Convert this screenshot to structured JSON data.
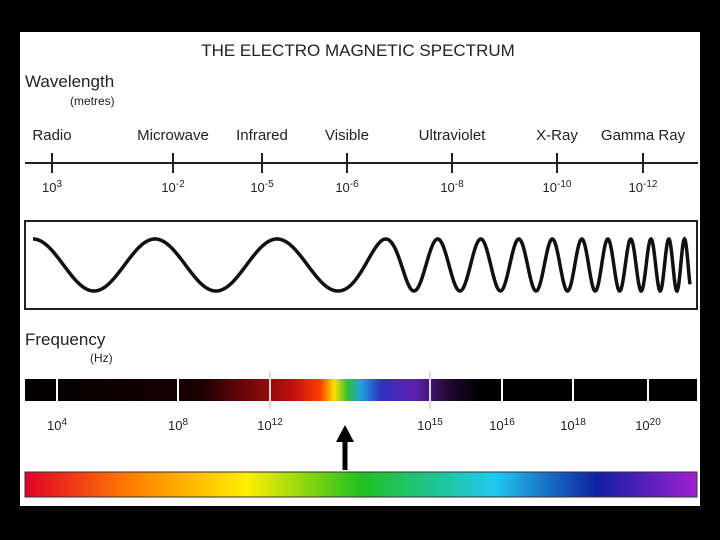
{
  "title": "THE ELECTRO MAGNETIC SPECTRUM",
  "wavelength": {
    "label": "Wavelength",
    "unit": "(metres)",
    "base": "10",
    "bands": [
      {
        "name": "Radio",
        "exp": "3"
      },
      {
        "name": "Microwave",
        "exp": "-2"
      },
      {
        "name": "Infrared",
        "exp": "-5"
      },
      {
        "name": "Visible",
        "exp": "-6"
      },
      {
        "name": "Ultraviolet",
        "exp": "-8"
      },
      {
        "name": "X-Ray",
        "exp": "-10"
      },
      {
        "name": "Gamma Ray",
        "exp": "-12"
      }
    ]
  },
  "frequency": {
    "label": "Frequency",
    "unit": "(Hz)",
    "base": "10",
    "exps": [
      "4",
      "8",
      "12",
      "15",
      "16",
      "18",
      "20"
    ]
  }
}
